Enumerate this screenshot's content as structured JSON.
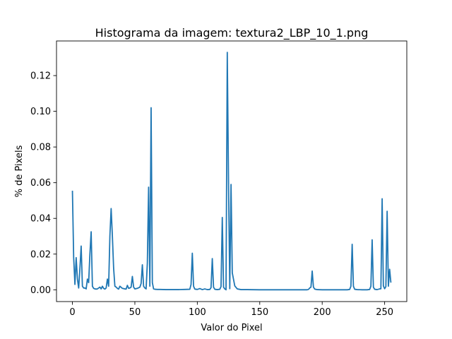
{
  "chart_data": {
    "type": "line",
    "title": "Histograma da imagem: textura2_LBP_10_1.png",
    "xlabel": "Valor do Pixel",
    "ylabel": "% de Pixels",
    "xlim": [
      -12.75,
      267.75
    ],
    "ylim": [
      -0.0066,
      0.1394
    ],
    "xticks": [
      0,
      50,
      100,
      150,
      200,
      250
    ],
    "yticks": [
      0.0,
      0.02,
      0.04,
      0.06,
      0.08,
      0.1,
      0.12
    ],
    "ytick_labels": [
      "0.00",
      "0.02",
      "0.04",
      "0.06",
      "0.08",
      "0.10",
      "0.12"
    ],
    "grid": false,
    "legend": "none",
    "series": [
      {
        "color": "#1f77b4",
        "x": [
          0,
          1,
          2,
          3,
          4,
          5,
          6,
          7,
          8,
          9,
          10,
          11,
          12,
          13,
          14,
          15,
          16,
          17,
          18,
          19,
          20,
          22,
          23,
          24,
          25,
          26,
          27,
          28,
          29,
          30,
          31,
          32,
          33,
          34,
          35,
          36,
          37,
          38,
          40,
          42,
          43,
          44,
          45,
          46,
          47,
          48,
          49,
          50,
          52,
          54,
          55,
          56,
          57,
          58,
          59,
          60,
          61,
          62,
          63,
          64,
          65,
          66,
          68,
          70,
          75,
          80,
          85,
          90,
          94,
          95,
          96,
          97,
          98,
          100,
          102,
          104,
          106,
          108,
          110,
          111,
          112,
          113,
          114,
          116,
          118,
          119,
          120,
          121,
          122,
          123,
          124,
          125,
          126,
          127,
          128,
          130,
          132,
          135,
          140,
          150,
          160,
          170,
          180,
          188,
          189,
          190,
          191,
          192,
          193,
          194,
          196,
          200,
          210,
          220,
          222,
          223,
          224,
          225,
          226,
          228,
          232,
          236,
          238,
          239,
          240,
          241,
          242,
          244,
          246,
          247,
          248,
          249,
          250,
          251,
          252,
          253,
          254,
          255
        ],
        "y": [
          0.0555,
          0.018,
          0.003,
          0.018,
          0.006,
          0.001,
          0.012,
          0.0245,
          0.002,
          0.001,
          0.001,
          0.0005,
          0.006,
          0.004,
          0.02,
          0.0325,
          0.002,
          0.0008,
          0.0005,
          0.0004,
          0.0005,
          0.0015,
          0.0005,
          0.002,
          0.0008,
          0.0004,
          0.001,
          0.006,
          0.002,
          0.03,
          0.0455,
          0.03,
          0.012,
          0.002,
          0.0015,
          0.0008,
          0.0004,
          0.002,
          0.0008,
          0.0005,
          0.0004,
          0.0025,
          0.0008,
          0.001,
          0.0015,
          0.0075,
          0.0015,
          0.0005,
          0.0008,
          0.0015,
          0.0035,
          0.014,
          0.002,
          0.001,
          0.0005,
          0.015,
          0.0575,
          0.002,
          0.102,
          0.004,
          0.0005,
          0.0003,
          0.0002,
          0.0002,
          0.0001,
          0.0001,
          0.0001,
          0.0002,
          0.0003,
          0.003,
          0.0205,
          0.002,
          0.0004,
          0.0002,
          0.0007,
          0.0001,
          0.0005,
          0.0001,
          0.0002,
          0.0012,
          0.0175,
          0.0015,
          0.0003,
          0.0001,
          0.0003,
          0.0018,
          0.0405,
          0.0015,
          0.0005,
          0.0,
          0.133,
          0.06,
          0.0006,
          0.059,
          0.0095,
          0.0022,
          0.0005,
          0.0001,
          0.0001,
          0.0,
          0.0,
          0.0,
          0.0,
          0.0,
          0.0002,
          0.001,
          0.0015,
          0.0105,
          0.0015,
          0.0004,
          0.0001,
          0.0,
          0.0,
          0.0,
          0.0002,
          0.002,
          0.0255,
          0.002,
          0.0003,
          0.0001,
          0.0,
          0.0,
          0.0002,
          0.002,
          0.028,
          0.0015,
          0.0003,
          0.0001,
          0.0005,
          0.0006,
          0.051,
          0.0022,
          0.0006,
          0.0018,
          0.044,
          0.002,
          0.0115,
          0.004
        ]
      }
    ]
  }
}
